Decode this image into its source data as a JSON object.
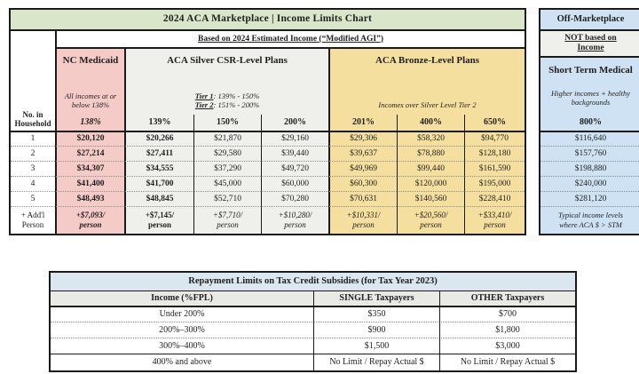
{
  "colors": {
    "title_green": "#d9e6ca",
    "medicaid_pink": "#f5cbc7",
    "silver_gray": "#efefec",
    "bronze_gold": "#f4df9f",
    "off_marketplace_blue": "#cfe2f3",
    "repayment_title_blue": "#dbe7ee"
  },
  "main_table": {
    "title": "2024 ACA Marketplace | Income Limits Chart",
    "based_on": "Based on 2024 Estimated Income (“Modified AGI”)",
    "household_label": "No. in Household",
    "sections": {
      "medicaid": {
        "title": "NC Medicaid",
        "note": "All incomes at or below 138%",
        "pct": "138%"
      },
      "silver": {
        "title": "ACA Silver CSR-Level Plans",
        "tier1_label": "Tier 1",
        "tier1_range": ": 139% - 150%",
        "tier2_label": "Tier 2",
        "tier2_range": ": 151% - 200%",
        "pcts": [
          "139%",
          "150%",
          "200%"
        ]
      },
      "bronze": {
        "title": "ACA Bronze-Level Plans",
        "note": "Incomes over Silver Level Tier 2",
        "pcts": [
          "201%",
          "400%",
          "650%"
        ]
      }
    },
    "rows": [
      {
        "label": "1",
        "values": [
          "$20,120",
          "$20,266",
          "$21,870",
          "$29,160",
          "$29,306",
          "$58,320",
          "$94,770"
        ]
      },
      {
        "label": "2",
        "values": [
          "$27,214",
          "$27,411",
          "$29,580",
          "$39,440",
          "$39,637",
          "$78,880",
          "$128,180"
        ]
      },
      {
        "label": "3",
        "values": [
          "$34,307",
          "$34,555",
          "$37,290",
          "$49,720",
          "$49,969",
          "$99,440",
          "$161,590"
        ]
      },
      {
        "label": "4",
        "values": [
          "$41,400",
          "$41,700",
          "$45,000",
          "$60,000",
          "$60,300",
          "$120,000",
          "$195,000"
        ]
      },
      {
        "label": "5",
        "values": [
          "$48,493",
          "$48,845",
          "$52,710",
          "$70,280",
          "$70,631",
          "$140,560",
          "$228,410"
        ]
      }
    ],
    "addl_row": {
      "label_line1": "+ Add'l",
      "label_line2": "Person",
      "values": [
        {
          "amount": "+$7,093/",
          "unit": "person"
        },
        {
          "amount": "+$7,145/",
          "unit": "person"
        },
        {
          "amount": "+$7,710/",
          "unit": "person"
        },
        {
          "amount": "+$10,280/",
          "unit": "person"
        },
        {
          "amount": "+$10,331/",
          "unit": "person"
        },
        {
          "amount": "+$20,560/",
          "unit": "person"
        },
        {
          "amount": "+$33,410/",
          "unit": "person"
        }
      ]
    }
  },
  "off_table": {
    "title": "Off-Marketplace",
    "not_based_line1": "NOT based on",
    "not_based_line2": "Income",
    "section_title": "Short Term Medical",
    "note": "Higher incomes + healthy backgrounds",
    "pct": "800%",
    "values": [
      "$116,640",
      "$157,760",
      "$198,880",
      "$240,000",
      "$281,120"
    ],
    "footer_line1": "Typical income levels",
    "footer_line2": "where ACA $ > STM"
  },
  "repayment_table": {
    "title": "Repayment Limits on Tax Credit Subsidies (for Tax Year 2023)",
    "col_income": "Income (%FPL)",
    "col_single": "SINGLE Taxpayers",
    "col_other": "OTHER Taxpayers",
    "rows": [
      {
        "income": "Under 200%",
        "single": "$350",
        "other": "$700"
      },
      {
        "income": "200%–300%",
        "single": "$900",
        "other": "$1,800"
      },
      {
        "income": "300%–400%",
        "single": "$1,500",
        "other": "$3,000"
      },
      {
        "income": "400% and above",
        "single": "No Limit / Repay Actual $",
        "other": "No Limit / Repay Actual $"
      }
    ]
  }
}
